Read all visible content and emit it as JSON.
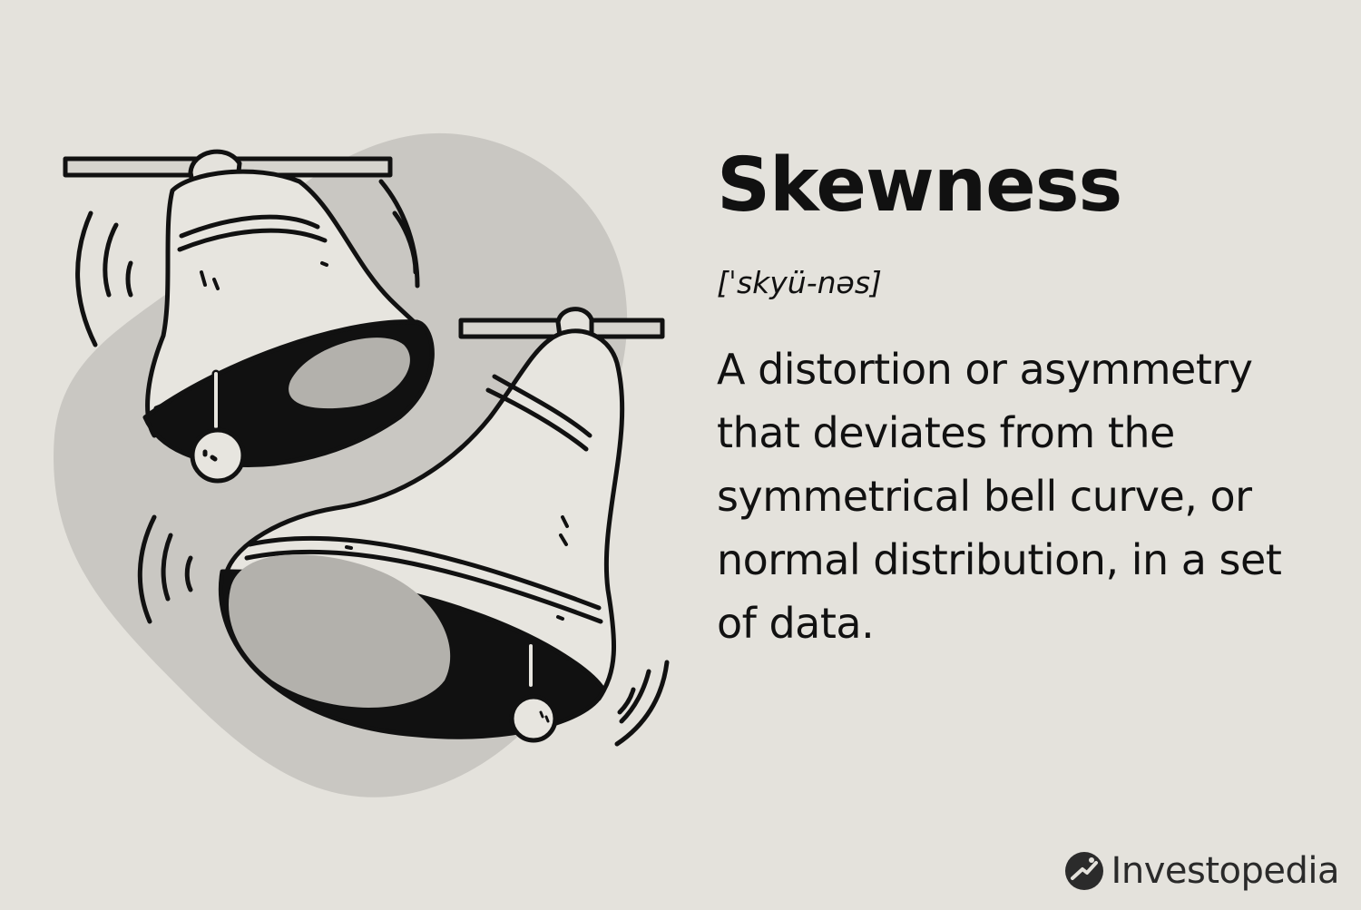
{
  "definition": {
    "term": "Skewness",
    "pronunciation": "[ˈskyü-nəs]",
    "meaning": "A distortion or asymmetry that deviates from the symmetrical bell curve, or normal distribution, in a set of data."
  },
  "brand": {
    "name": "Investopedia"
  },
  "illustration": {
    "subject": "two-ringing-bells-icon"
  },
  "colors": {
    "background": "#e4e2dc",
    "blob": "#c7c5c0",
    "ink": "#111111",
    "bell_inner": "#b3b1ac"
  }
}
